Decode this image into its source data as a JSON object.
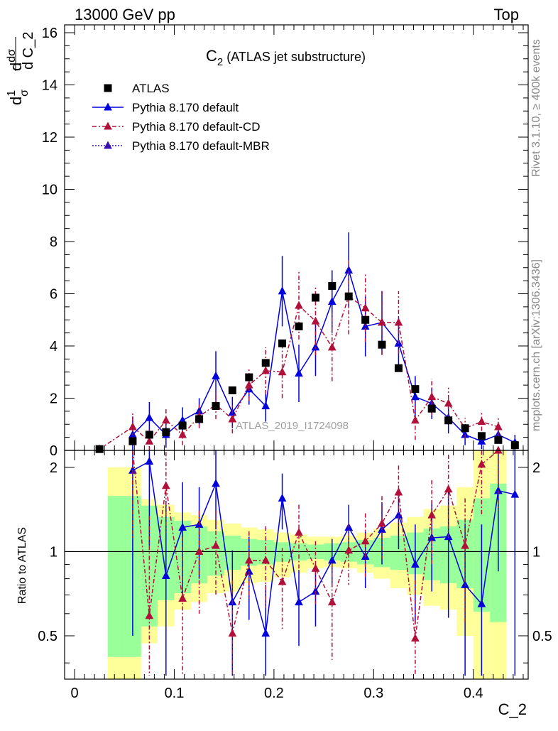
{
  "header": {
    "left": "13000 GeV pp",
    "right": "Top"
  },
  "side_labels": {
    "rivet": "Rivet 3.1.10, ≥ 400k events",
    "mcplots": "mcplots.cern.ch [arXiv:1306.3436]"
  },
  "chart_data": {
    "type": "scatter",
    "title_main": "C",
    "title_sub": "2",
    "title_rest": " (ATLAS jet substructure)",
    "analysis_label": "ATLAS_2019_I1724098",
    "xlabel": "C_2",
    "ylabel_top": "d C_2",
    "ylabel_ratio": "Ratio to ATLAS",
    "xlim": [
      -0.01,
      0.455
    ],
    "ylim_main": [
      0,
      16.3
    ],
    "ylim_ratio": [
      0.35,
      2.3
    ],
    "xticks": [
      {
        "v": 0,
        "label": "0"
      },
      {
        "v": 0.1,
        "label": "0.1"
      },
      {
        "v": 0.2,
        "label": "0.2"
      },
      {
        "v": 0.3,
        "label": "0.3"
      },
      {
        "v": 0.4,
        "label": "0.4"
      }
    ],
    "yticks_main": [
      {
        "v": 0,
        "label": "0"
      },
      {
        "v": 2,
        "label": "2"
      },
      {
        "v": 4,
        "label": "4"
      },
      {
        "v": 6,
        "label": "6"
      },
      {
        "v": 8,
        "label": "8"
      },
      {
        "v": 10,
        "label": "10"
      },
      {
        "v": 12,
        "label": "12"
      },
      {
        "v": 14,
        "label": "14"
      },
      {
        "v": 16,
        "label": "16"
      }
    ],
    "yticks_ratio": [
      {
        "v": 0.5,
        "label": "0.5"
      },
      {
        "v": 1,
        "label": "1"
      },
      {
        "v": 2,
        "label": "2"
      }
    ],
    "x": [
      0.025,
      0.0583,
      0.075,
      0.0917,
      0.1083,
      0.125,
      0.1417,
      0.1583,
      0.175,
      0.1917,
      0.2083,
      0.225,
      0.2417,
      0.2583,
      0.275,
      0.2917,
      0.3083,
      0.325,
      0.3417,
      0.3583,
      0.375,
      0.3917,
      0.4083,
      0.425,
      0.4417
    ],
    "bin_edges": [
      0.0167,
      0.0333,
      0.05,
      0.0667,
      0.0833,
      0.1,
      0.1167,
      0.1333,
      0.15,
      0.1667,
      0.1833,
      0.2,
      0.2167,
      0.2333,
      0.25,
      0.2667,
      0.2833,
      0.3,
      0.3167,
      0.3333,
      0.35,
      0.3667,
      0.3833,
      0.4,
      0.4167,
      0.4333,
      0.45
    ],
    "legend": [
      {
        "label": "ATLAS",
        "marker": "square",
        "color": "#000000",
        "line": "none"
      },
      {
        "label": "Pythia 8.170 default",
        "marker": "triangle",
        "color": "#0000dd",
        "line": "solid"
      },
      {
        "label": "Pythia 8.170 default-CD",
        "marker": "triangle",
        "color": "#b0103a",
        "line": "dashdot"
      },
      {
        "label": "Pythia 8.170 default-MBR",
        "marker": "triangle",
        "color": "#3a10b0",
        "line": "dotted"
      }
    ],
    "band_colors": {
      "inner": "#99ff99",
      "outer": "#ffff99"
    },
    "series": [
      {
        "name": "ATLAS",
        "values": [
          0.05,
          0.35,
          0.6,
          0.7,
          0.95,
          1.2,
          1.7,
          2.3,
          2.8,
          3.35,
          4.1,
          4.75,
          5.85,
          6.3,
          5.9,
          5.0,
          4.05,
          3.15,
          2.35,
          1.6,
          1.15,
          0.85,
          0.55,
          0.4,
          0.2
        ]
      },
      {
        "name": "Pythia 8.170 default",
        "values": [
          null,
          0.6,
          1.25,
          0.6,
          1.15,
          1.5,
          2.85,
          1.45,
          2.35,
          1.7,
          6.1,
          2.95,
          3.95,
          5.7,
          6.9,
          4.75,
          4.9,
          4.1,
          2.05,
          1.8,
          1.25,
          0.6,
          0.35,
          0.6,
          0.3
        ],
        "err": [
          null,
          0.7,
          0.6,
          0.5,
          0.5,
          0.5,
          0.95,
          0.6,
          0.6,
          0.6,
          1.35,
          1.1,
          1.1,
          1.2,
          1.45,
          1.15,
          1.2,
          1.0,
          0.8,
          0.6,
          0.6,
          0.4,
          0.3,
          0.3,
          0.3
        ],
        "ratio": [
          null,
          1.95,
          2.1,
          0.82,
          1.22,
          1.25,
          1.75,
          0.66,
          0.85,
          0.51,
          1.55,
          0.66,
          0.72,
          0.93,
          1.22,
          0.96,
          1.2,
          1.35,
          0.9,
          1.12,
          1.13,
          0.76,
          0.65,
          1.65,
          1.6
        ],
        "ratio_err": [
          null,
          1.45,
          1.05,
          0.7,
          0.55,
          0.45,
          0.55,
          0.35,
          0.28,
          0.25,
          0.35,
          0.2,
          0.18,
          0.18,
          0.25,
          0.22,
          0.3,
          0.33,
          0.35,
          0.4,
          0.55,
          0.5,
          0.6,
          0.8,
          1.3
        ]
      },
      {
        "name": "Pythia 8.170 default-CD",
        "values": [
          0.05,
          0.9,
          0.35,
          1.15,
          0.6,
          1.3,
          1.75,
          1.2,
          2.5,
          3.05,
          3.0,
          5.55,
          4.95,
          3.95,
          5.9,
          5.45,
          4.9,
          4.9,
          1.15,
          2.05,
          1.8,
          0.85,
          1.1,
          0.9,
          null
        ],
        "err": [
          0.05,
          0.55,
          0.45,
          0.5,
          0.4,
          0.45,
          0.55,
          0.55,
          0.6,
          0.9,
          1.0,
          1.3,
          1.3,
          1.3,
          1.45,
          1.3,
          1.25,
          1.2,
          0.75,
          0.7,
          0.6,
          0.4,
          0.35,
          0.35,
          null
        ],
        "ratio": [
          null,
          2.6,
          0.59,
          1.72,
          0.68,
          1.0,
          1.05,
          0.51,
          0.93,
          0.93,
          0.78,
          1.17,
          0.87,
          0.66,
          1.01,
          1.09,
          1.26,
          1.63,
          0.49,
          1.35,
          1.67,
          1.05,
          2.05,
          2.3,
          null
        ],
        "ratio_err": [
          null,
          1.5,
          0.75,
          0.55,
          0.45,
          0.4,
          0.35,
          0.28,
          0.25,
          0.3,
          0.25,
          0.3,
          0.22,
          0.25,
          0.25,
          0.28,
          0.32,
          0.4,
          0.3,
          0.45,
          0.55,
          0.5,
          0.7,
          0.9,
          null
        ]
      },
      {
        "name": "Pythia 8.170 default-MBR",
        "values": [],
        "err": [],
        "ratio": [],
        "ratio_err": []
      }
    ],
    "ratio_band": {
      "inner_lo": [
        null,
        0.42,
        0.42,
        0.54,
        0.67,
        0.71,
        0.77,
        0.82,
        0.86,
        0.89,
        0.9,
        0.92,
        0.93,
        0.94,
        0.93,
        0.92,
        0.9,
        0.88,
        0.86,
        0.83,
        0.79,
        0.77,
        0.74,
        0.61,
        0.56
      ],
      "inner_hi": [
        null,
        1.58,
        1.58,
        1.46,
        1.33,
        1.29,
        1.23,
        1.18,
        1.14,
        1.11,
        1.1,
        1.08,
        1.07,
        1.06,
        1.07,
        1.08,
        1.1,
        1.12,
        1.14,
        1.17,
        1.21,
        1.23,
        1.3,
        1.55,
        1.75
      ],
      "outer_lo": [
        null,
        0.34,
        0.34,
        0.47,
        0.54,
        0.62,
        0.66,
        0.71,
        0.72,
        0.77,
        0.78,
        0.81,
        0.84,
        0.87,
        0.88,
        0.87,
        0.84,
        0.8,
        0.74,
        0.7,
        0.64,
        0.62,
        0.5,
        0.35,
        0.35
      ],
      "outer_hi": [
        null,
        2.0,
        2.0,
        1.54,
        1.47,
        1.38,
        1.35,
        1.3,
        1.26,
        1.22,
        1.2,
        1.17,
        1.15,
        1.13,
        1.13,
        1.14,
        1.17,
        1.21,
        1.27,
        1.33,
        1.42,
        1.46,
        1.7,
        2.3,
        2.3
      ]
    }
  }
}
